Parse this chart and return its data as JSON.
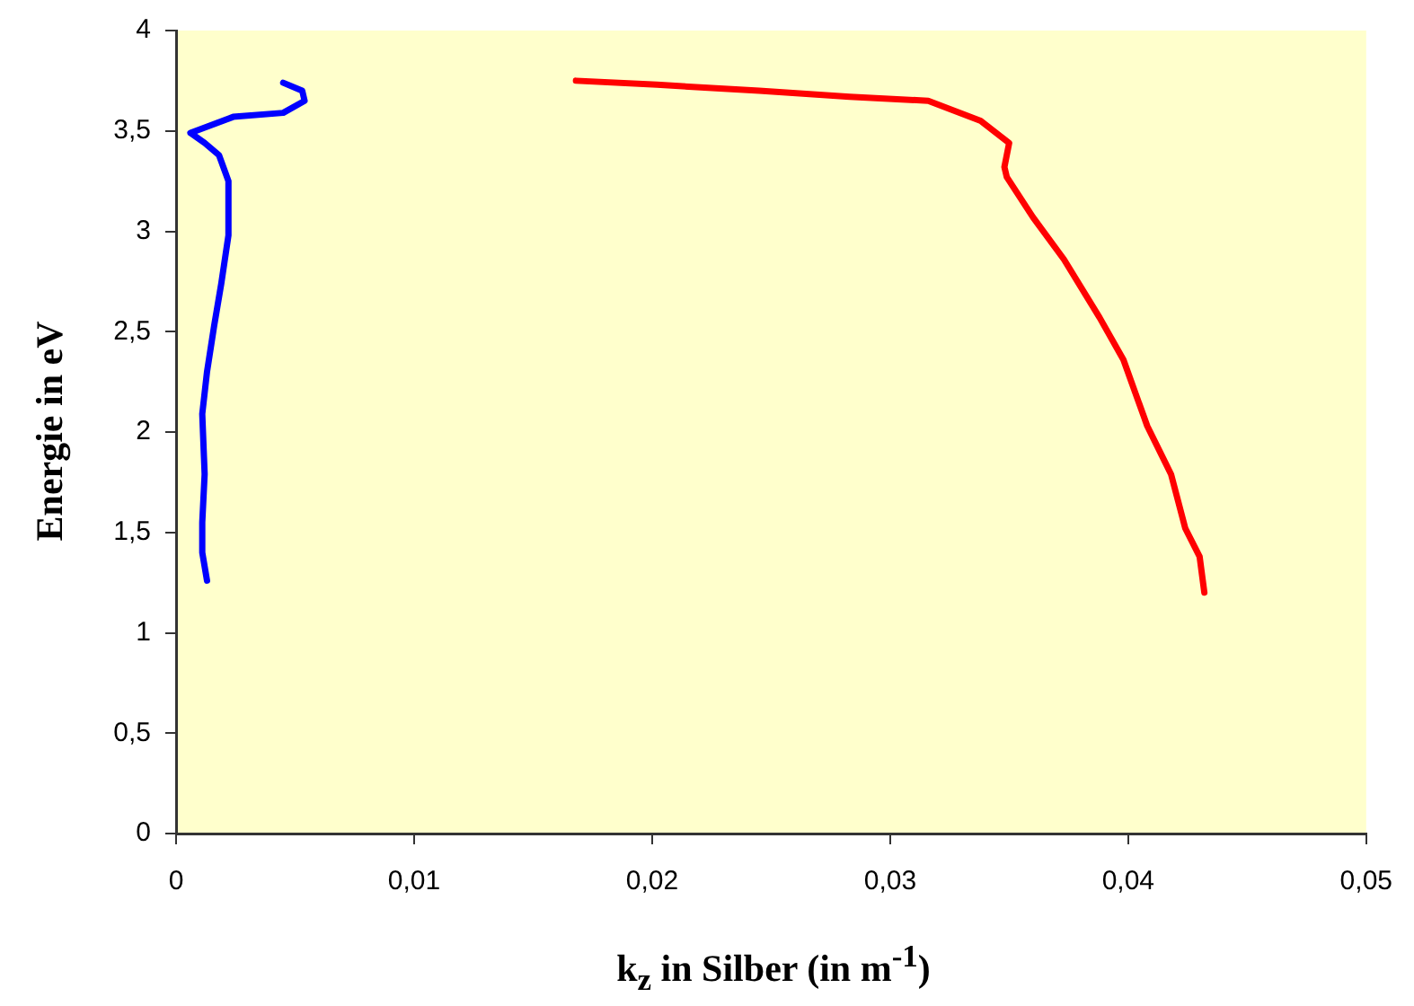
{
  "chart_data": {
    "type": "line",
    "xlabel": "k$_{z}$ in Silber (in m$^{-1}$)",
    "ylabel": "Energie in eV",
    "xlim": [
      0,
      0.05
    ],
    "xticks": [
      0,
      {
        "value": 0.01,
        "label": "0,01"
      },
      {
        "value": 0.02,
        "label": "0,02"
      },
      {
        "value": 0.03,
        "label": "0,03"
      },
      {
        "value": 0.04,
        "label": "0,04"
      },
      {
        "value": 0.05,
        "label": "0,05"
      }
    ],
    "ylim": [
      0,
      4
    ],
    "yticks": [
      0,
      {
        "value": 0.5,
        "label": "0,5"
      },
      1,
      {
        "value": 1.5,
        "label": "1,5"
      },
      2,
      {
        "value": 2.5,
        "label": "2,5"
      },
      3,
      {
        "value": 3.5,
        "label": "3,5"
      },
      4
    ],
    "marker": "none",
    "legend": false,
    "series": [
      {
        "color": "#0000ff",
        "x": [
          0.0045,
          0.0053,
          0.0054,
          0.0045,
          0.0024,
          0.0006,
          0.0012,
          0.0018,
          0.0022,
          0.0022,
          0.0019,
          0.0016,
          0.0013,
          0.0011,
          0.0012,
          0.0011,
          0.0011,
          0.0013
        ],
        "values": [
          3.74,
          3.7,
          3.65,
          3.59,
          3.57,
          3.49,
          3.44,
          3.38,
          3.25,
          2.98,
          2.74,
          2.53,
          2.3,
          2.09,
          1.79,
          1.55,
          1.4,
          1.26
        ]
      },
      {
        "color": "#ff0000",
        "x": [
          0.0168,
          0.0202,
          0.0245,
          0.0283,
          0.0316,
          0.0338,
          0.035,
          0.0348,
          0.0349,
          0.036,
          0.0373,
          0.0388,
          0.0398,
          0.0408,
          0.0418,
          0.0424,
          0.043,
          0.0432
        ],
        "values": [
          3.75,
          3.73,
          3.7,
          3.67,
          3.65,
          3.55,
          3.44,
          3.32,
          3.27,
          3.07,
          2.86,
          2.57,
          2.36,
          2.03,
          1.79,
          1.52,
          1.38,
          1.2
        ]
      }
    ]
  }
}
